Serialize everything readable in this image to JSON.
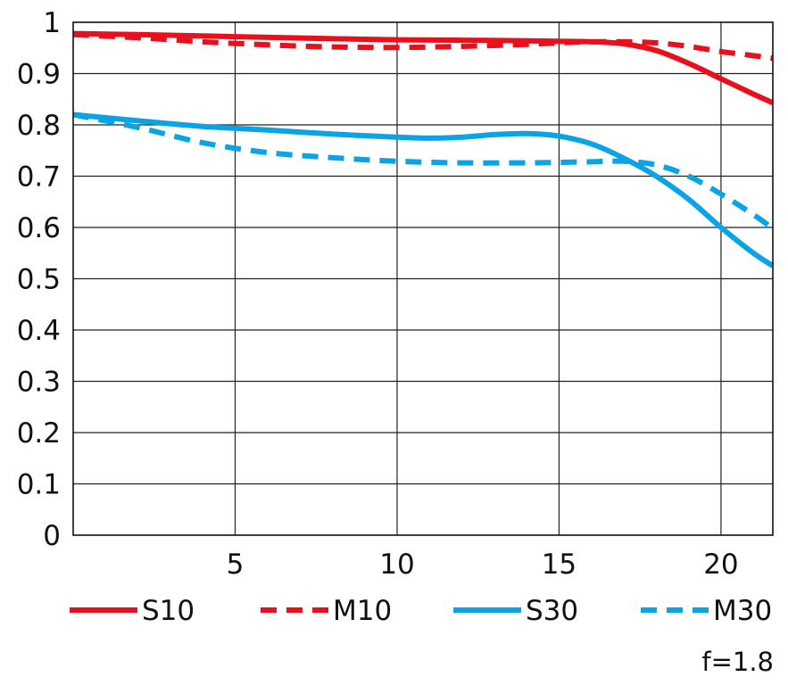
{
  "chart_data": {
    "type": "line",
    "title": "",
    "xlabel": "",
    "ylabel": "",
    "xlim": [
      0,
      21.6
    ],
    "ylim": [
      0,
      1
    ],
    "x_ticks": [
      5,
      10,
      15,
      20
    ],
    "x_tick_labels": [
      "5",
      "10",
      "15",
      "20"
    ],
    "y_ticks": [
      0,
      0.1,
      0.2,
      0.3,
      0.4,
      0.5,
      0.6,
      0.7,
      0.8,
      0.9,
      1
    ],
    "y_tick_labels": [
      "0",
      "0.1",
      "0.2",
      "0.3",
      "0.4",
      "0.5",
      "0.6",
      "0.7",
      "0.8",
      "0.9",
      "1"
    ],
    "grid": true,
    "legend_position": "bottom",
    "annotation": "f=1.8",
    "series": [
      {
        "name": "S10",
        "color": "#e8101c",
        "style": "solid",
        "points": [
          [
            0,
            0.978
          ],
          [
            2,
            0.976
          ],
          [
            5,
            0.972
          ],
          [
            8,
            0.968
          ],
          [
            10,
            0.966
          ],
          [
            12,
            0.965
          ],
          [
            14,
            0.964
          ],
          [
            15,
            0.963
          ],
          [
            16,
            0.962
          ],
          [
            17,
            0.958
          ],
          [
            18,
            0.945
          ],
          [
            19,
            0.92
          ],
          [
            20,
            0.89
          ],
          [
            21,
            0.86
          ],
          [
            21.6,
            0.843
          ]
        ]
      },
      {
        "name": "M10",
        "color": "#e8101c",
        "style": "dashed",
        "points": [
          [
            0,
            0.976
          ],
          [
            2,
            0.97
          ],
          [
            4,
            0.962
          ],
          [
            6,
            0.956
          ],
          [
            8,
            0.952
          ],
          [
            10,
            0.951
          ],
          [
            12,
            0.953
          ],
          [
            14,
            0.957
          ],
          [
            15,
            0.96
          ],
          [
            16,
            0.962
          ],
          [
            17,
            0.962
          ],
          [
            18,
            0.96
          ],
          [
            19,
            0.953
          ],
          [
            20,
            0.943
          ],
          [
            21,
            0.935
          ],
          [
            21.6,
            0.93
          ]
        ]
      },
      {
        "name": "S30",
        "color": "#0aa3e6",
        "style": "solid",
        "points": [
          [
            0,
            0.82
          ],
          [
            2,
            0.808
          ],
          [
            4,
            0.797
          ],
          [
            6,
            0.79
          ],
          [
            8,
            0.782
          ],
          [
            10,
            0.776
          ],
          [
            11,
            0.774
          ],
          [
            12,
            0.776
          ],
          [
            13,
            0.781
          ],
          [
            14,
            0.783
          ],
          [
            15,
            0.778
          ],
          [
            16,
            0.763
          ],
          [
            17,
            0.735
          ],
          [
            18,
            0.7
          ],
          [
            19,
            0.655
          ],
          [
            20,
            0.6
          ],
          [
            21,
            0.55
          ],
          [
            21.6,
            0.525
          ]
        ]
      },
      {
        "name": "M30",
        "color": "#0aa3e6",
        "style": "dashed",
        "points": [
          [
            0,
            0.82
          ],
          [
            2,
            0.795
          ],
          [
            4,
            0.765
          ],
          [
            6,
            0.746
          ],
          [
            8,
            0.736
          ],
          [
            10,
            0.729
          ],
          [
            12,
            0.726
          ],
          [
            14,
            0.726
          ],
          [
            15,
            0.727
          ],
          [
            16,
            0.728
          ],
          [
            17,
            0.729
          ],
          [
            18,
            0.722
          ],
          [
            19,
            0.7
          ],
          [
            20,
            0.665
          ],
          [
            21,
            0.625
          ],
          [
            21.6,
            0.598
          ]
        ]
      }
    ]
  }
}
